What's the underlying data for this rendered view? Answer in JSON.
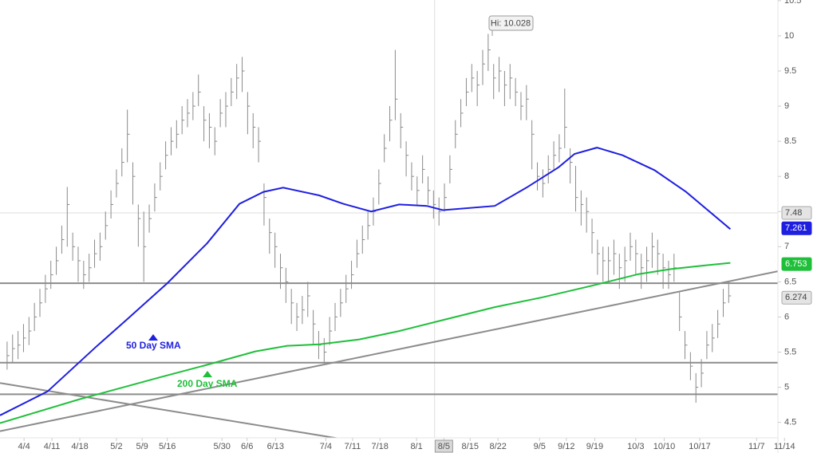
{
  "chart_data": {
    "type": "ohlc",
    "xlim": [
      -1.3,
      141
    ],
    "ylim": [
      4.28,
      10.51
    ],
    "yticks": [
      4.5,
      5,
      5.5,
      6,
      6.5,
      7,
      7.5,
      8,
      8.5,
      9,
      9.5,
      10,
      10.5
    ],
    "xticks": [
      {
        "value": 3.1,
        "label": "4/4"
      },
      {
        "value": 8.2,
        "label": "4/11"
      },
      {
        "value": 13.3,
        "label": "4/18"
      },
      {
        "value": 20,
        "label": "5/2"
      },
      {
        "value": 24.7,
        "label": "5/9"
      },
      {
        "value": 29.3,
        "label": "5/16"
      },
      {
        "value": 39.3,
        "label": "5/30"
      },
      {
        "value": 43.9,
        "label": "6/6"
      },
      {
        "value": 49.1,
        "label": "6/13"
      },
      {
        "value": 58.3,
        "label": "7/4"
      },
      {
        "value": 63.2,
        "label": "7/11"
      },
      {
        "value": 68.2,
        "label": "7/18"
      },
      {
        "value": 74.9,
        "label": "8/1"
      },
      {
        "value": 79.9,
        "label": "8/5"
      },
      {
        "value": 84.7,
        "label": "8/15"
      },
      {
        "value": 89.8,
        "label": "8/22"
      },
      {
        "value": 97.4,
        "label": "9/5"
      },
      {
        "value": 102.3,
        "label": "9/12"
      },
      {
        "value": 107.5,
        "label": "9/19"
      },
      {
        "value": 115,
        "label": "10/3"
      },
      {
        "value": 120.2,
        "label": "10/10"
      },
      {
        "value": 126.7,
        "label": "10/17"
      },
      {
        "value": 137.1,
        "label": "11/7"
      },
      {
        "value": 142.2,
        "label": "11/14"
      }
    ],
    "bar_color": "#8a8a8a",
    "high": [
      5.65,
      5.75,
      5.8,
      5.9,
      6.0,
      6.2,
      6.4,
      6.6,
      6.8,
      7.0,
      7.3,
      7.85,
      7.2,
      7.0,
      6.8,
      6.9,
      7.1,
      7.2,
      7.5,
      7.8,
      8.1,
      8.4,
      8.95,
      8.2,
      7.6,
      7.5,
      7.6,
      7.9,
      8.2,
      8.5,
      8.7,
      8.8,
      9.0,
      9.1,
      9.2,
      9.45,
      9.0,
      8.9,
      8.7,
      9.1,
      9.2,
      9.4,
      9.6,
      9.7,
      9.2,
      8.9,
      8.7,
      7.9,
      7.4,
      7.2,
      6.9,
      6.7,
      6.4,
      6.2,
      6.3,
      6.5,
      6.1,
      5.8,
      5.7,
      6.0,
      6.2,
      6.4,
      6.6,
      6.8,
      7.1,
      7.3,
      7.5,
      7.7,
      8.1,
      8.6,
      9.0,
      9.8,
      8.9,
      8.5,
      8.2,
      8.0,
      8.3,
      8.0,
      7.8,
      7.7,
      7.9,
      8.3,
      8.8,
      9.1,
      9.4,
      9.6,
      9.5,
      9.8,
      10.028,
      9.6,
      9.7,
      9.5,
      9.6,
      9.4,
      9.2,
      9.3,
      8.8,
      8.2,
      8.1,
      8.3,
      8.5,
      8.6,
      9.25,
      8.4,
      8.15,
      7.8,
      7.7,
      7.4,
      7.1,
      7.0,
      7.0,
      7.1,
      6.9,
      7.0,
      7.2,
      7.1,
      6.9,
      7.0,
      7.2,
      7.1,
      6.9,
      6.8,
      6.9,
      6.35,
      5.8,
      5.5,
      5.2,
      5.4,
      5.8,
      5.9,
      6.1,
      6.4,
      6.5
    ],
    "low": [
      5.25,
      5.35,
      5.4,
      5.5,
      5.6,
      5.8,
      6.0,
      6.2,
      6.4,
      6.6,
      6.9,
      7.0,
      6.8,
      6.5,
      6.4,
      6.5,
      6.7,
      6.8,
      7.1,
      7.4,
      7.7,
      8.0,
      8.2,
      7.6,
      7.0,
      6.5,
      7.2,
      7.5,
      7.8,
      8.1,
      8.3,
      8.4,
      8.6,
      8.7,
      8.8,
      9.0,
      8.5,
      8.4,
      8.3,
      8.7,
      8.7,
      9.0,
      9.1,
      9.2,
      8.6,
      8.4,
      8.2,
      7.3,
      6.9,
      6.7,
      6.4,
      6.2,
      5.9,
      5.8,
      5.9,
      6.0,
      5.6,
      5.4,
      5.35,
      5.6,
      5.8,
      6.0,
      6.2,
      6.4,
      6.7,
      6.9,
      7.1,
      7.3,
      7.6,
      8.2,
      8.5,
      8.8,
      8.4,
      8.0,
      7.8,
      7.6,
      7.9,
      7.6,
      7.4,
      7.3,
      7.5,
      7.9,
      8.4,
      8.7,
      9.0,
      9.2,
      9.0,
      9.3,
      9.5,
      9.1,
      9.2,
      9.0,
      9.1,
      9.0,
      8.8,
      8.8,
      8.1,
      7.8,
      7.7,
      7.9,
      8.1,
      8.2,
      8.4,
      7.9,
      7.5,
      7.3,
      7.2,
      6.9,
      6.6,
      6.5,
      6.5,
      6.6,
      6.4,
      6.5,
      6.8,
      6.6,
      6.4,
      6.5,
      6.7,
      6.6,
      6.4,
      6.4,
      6.5,
      5.8,
      5.4,
      5.1,
      4.78,
      5.0,
      5.4,
      5.5,
      5.7,
      6.0,
      6.2
    ],
    "close": [
      5.45,
      5.55,
      5.6,
      5.7,
      5.8,
      6.0,
      6.2,
      6.4,
      6.6,
      6.8,
      7.1,
      7.6,
      7.0,
      6.8,
      6.6,
      6.7,
      6.9,
      7.0,
      7.3,
      7.6,
      7.9,
      8.2,
      8.6,
      8.0,
      7.4,
      7.0,
      7.4,
      7.7,
      8.0,
      8.3,
      8.5,
      8.6,
      8.8,
      8.9,
      9.0,
      9.2,
      8.8,
      8.7,
      8.5,
      8.9,
      9.0,
      9.2,
      9.4,
      9.5,
      9.0,
      8.7,
      8.5,
      7.7,
      7.2,
      7.0,
      6.7,
      6.5,
      6.2,
      6.0,
      6.1,
      6.3,
      5.9,
      5.6,
      5.5,
      5.8,
      6.0,
      6.2,
      6.4,
      6.6,
      6.9,
      7.1,
      7.3,
      7.5,
      7.9,
      8.4,
      8.8,
      9.1,
      8.7,
      8.3,
      8.0,
      7.8,
      8.1,
      7.8,
      7.6,
      7.5,
      7.7,
      8.1,
      8.6,
      8.9,
      9.2,
      9.4,
      9.3,
      9.6,
      9.8,
      9.4,
      9.5,
      9.3,
      9.4,
      9.2,
      9.0,
      9.1,
      8.6,
      8.0,
      7.9,
      8.1,
      8.3,
      8.4,
      8.7,
      8.2,
      7.7,
      7.6,
      7.5,
      7.2,
      6.9,
      6.8,
      6.8,
      6.9,
      6.7,
      6.8,
      7.0,
      6.9,
      6.7,
      6.8,
      7.0,
      6.9,
      6.7,
      6.6,
      6.7,
      6.0,
      5.6,
      5.3,
      5.0,
      5.2,
      5.6,
      5.7,
      5.9,
      6.2,
      6.3
    ],
    "series": [
      {
        "name": "50 Day SMA",
        "color": "#1f1fe0",
        "x": [
          -1.3,
          7.4,
          16.2,
          22.0,
          29.3,
          36.6,
          42.5,
          46.9,
          50.5,
          57.1,
          61.5,
          66.6,
          71.7,
          76.8,
          79.7,
          89.2,
          95.0,
          100.9,
          103.8,
          107.9,
          112.6,
          118.4,
          124.2,
          132.3
        ],
        "values": [
          4.6,
          4.94,
          5.57,
          5.97,
          6.48,
          7.05,
          7.61,
          7.78,
          7.84,
          7.73,
          7.61,
          7.5,
          7.6,
          7.58,
          7.52,
          7.58,
          7.84,
          8.13,
          8.32,
          8.41,
          8.3,
          8.09,
          7.78,
          7.25
        ]
      },
      {
        "name": "200 Day SMA",
        "color": "#1fbf3a",
        "x": [
          -1.3,
          13.3,
          27.9,
          36.6,
          45.4,
          51.2,
          57.1,
          64.4,
          71.7,
          80.4,
          89.2,
          97.9,
          106.7,
          115.5,
          121.3,
          127.2,
          132.3
        ],
        "values": [
          4.49,
          4.83,
          5.14,
          5.32,
          5.51,
          5.59,
          5.61,
          5.68,
          5.8,
          5.97,
          6.14,
          6.28,
          6.44,
          6.61,
          6.68,
          6.73,
          6.77
        ]
      }
    ],
    "hlines": [
      6.48,
      5.35,
      4.9
    ],
    "trendlines": [
      {
        "x": [
          -1.3,
          141
        ],
        "values": [
          4.375,
          6.65
        ]
      },
      {
        "x": [
          -1.3,
          61.5
        ],
        "values": [
          5.06,
          4.26
        ]
      }
    ],
    "line_color": "#8c8c8c",
    "crosshair": {
      "x": 78.2,
      "value": 7.48
    },
    "price_tags": [
      {
        "value": 7.48,
        "color": "#e4e4e4"
      },
      {
        "value": 7.261,
        "color": "#1f1fe0"
      },
      {
        "value": 6.753,
        "color": "#1fbf3a"
      },
      {
        "value": 6.274,
        "color": "#e4e4e4"
      }
    ],
    "annotations": {
      "high": "Hi: 10.028",
      "sma50": "50 Day SMA",
      "sma200": "200 Day SMA"
    }
  }
}
